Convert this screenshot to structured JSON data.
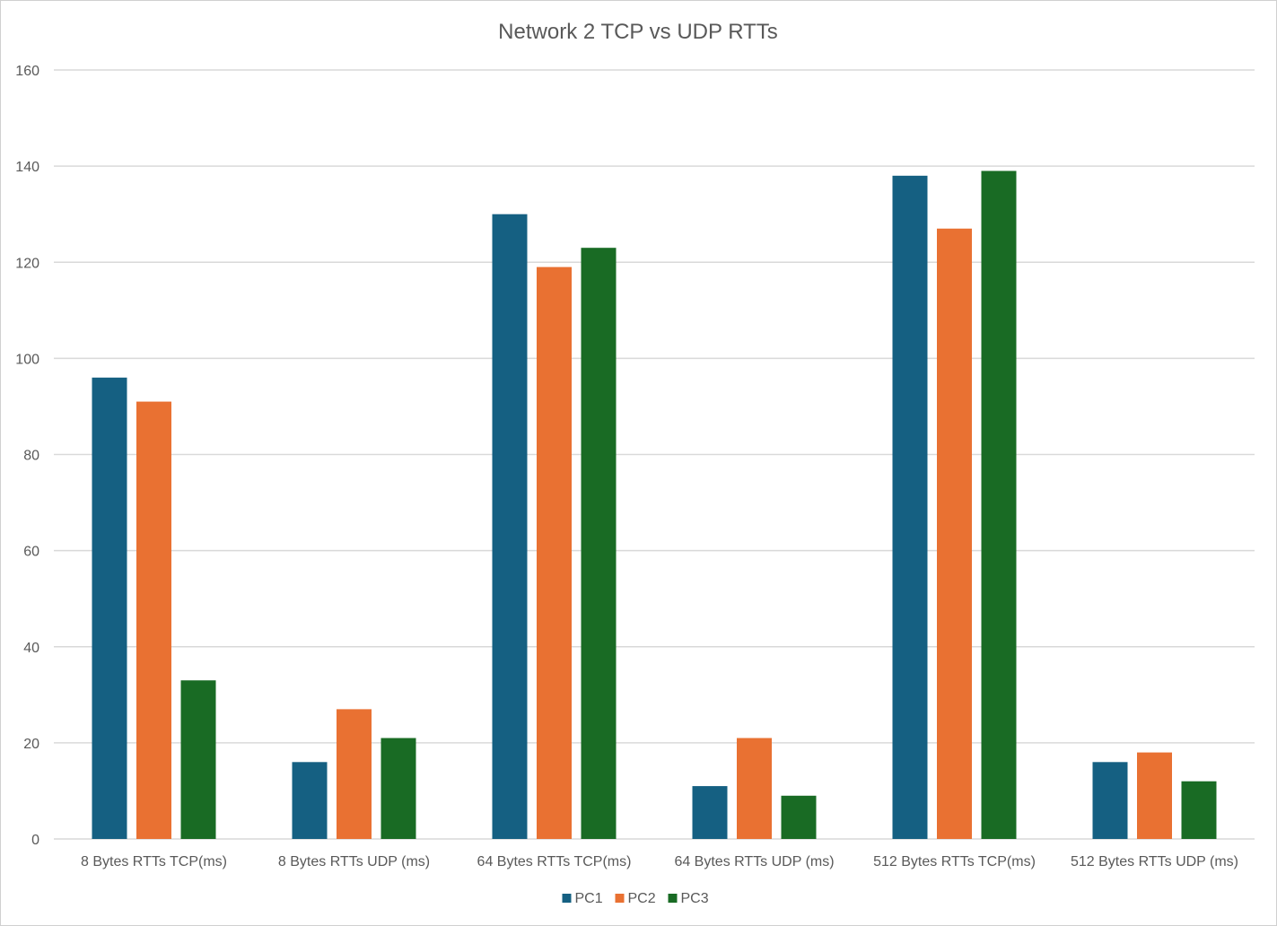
{
  "chart_data": {
    "type": "bar",
    "title": "Network 2 TCP vs UDP RTTs",
    "xlabel": "",
    "ylabel": "",
    "ylim": [
      0,
      160
    ],
    "yticks": [
      0,
      20,
      40,
      60,
      80,
      100,
      120,
      140,
      160
    ],
    "grid": true,
    "legend_position": "bottom",
    "categories": [
      "8 Bytes RTTs TCP(ms)",
      "8 Bytes RTTs UDP (ms)",
      "64 Bytes RTTs TCP(ms)",
      "64 Bytes RTTs UDP (ms)",
      "512 Bytes RTTs TCP(ms)",
      "512 Bytes RTTs UDP (ms)"
    ],
    "series": [
      {
        "name": "PC1",
        "color": "#156082",
        "values": [
          96,
          16,
          130,
          11,
          138,
          16
        ]
      },
      {
        "name": "PC2",
        "color": "#E97132",
        "values": [
          91,
          27,
          119,
          21,
          127,
          18
        ]
      },
      {
        "name": "PC3",
        "color": "#196B24",
        "values": [
          33,
          21,
          123,
          9,
          139,
          12
        ]
      }
    ]
  }
}
